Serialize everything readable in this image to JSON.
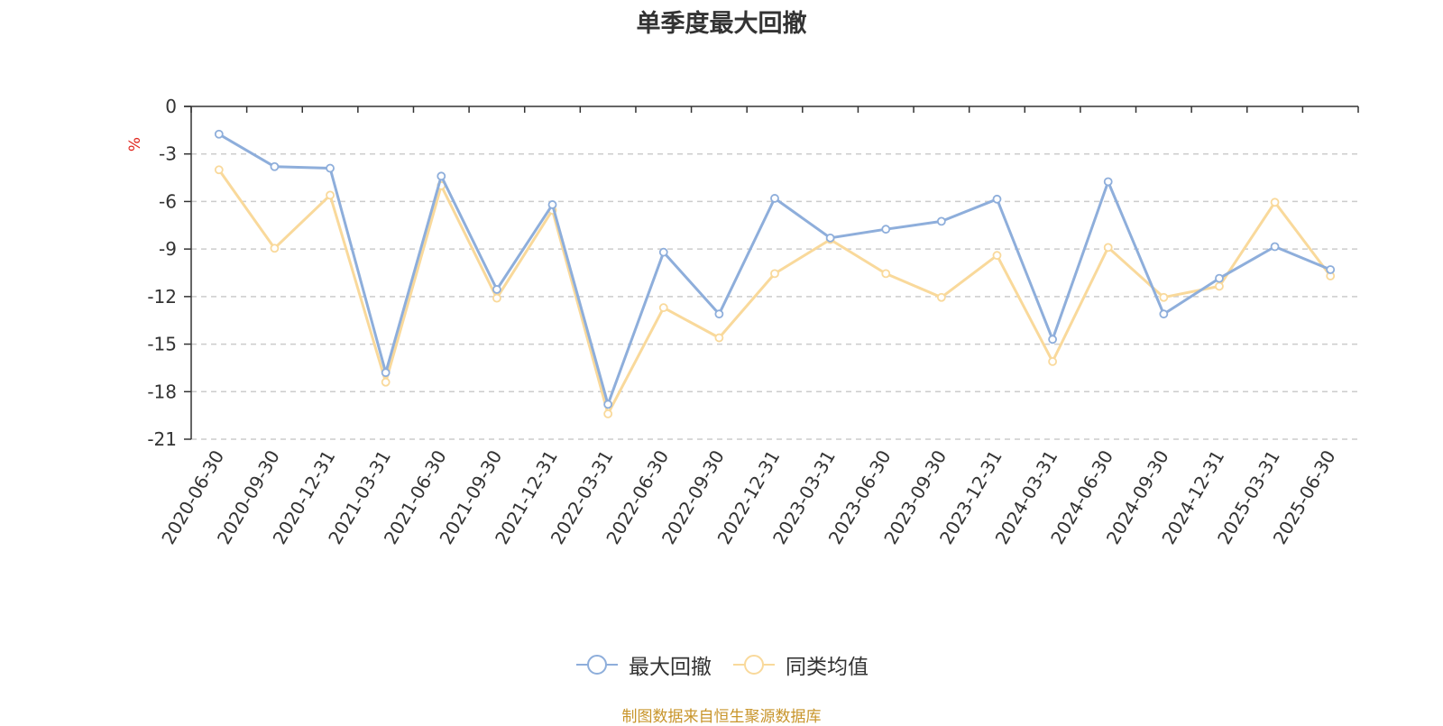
{
  "chart_data": {
    "type": "line",
    "title": "单季度最大回撤",
    "ylabel": "%",
    "ylim": [
      -21,
      0
    ],
    "yticks": [
      0,
      -3,
      -6,
      -9,
      -12,
      -15,
      -18,
      -21
    ],
    "grid": true,
    "legend_position": "bottom",
    "categories": [
      "2020-06-30",
      "2020-09-30",
      "2020-12-31",
      "2021-03-31",
      "2021-06-30",
      "2021-09-30",
      "2021-12-31",
      "2022-03-31",
      "2022-06-30",
      "2022-09-30",
      "2022-12-31",
      "2023-03-31",
      "2023-06-30",
      "2023-09-30",
      "2023-12-31",
      "2024-03-31",
      "2024-06-30",
      "2024-09-30",
      "2024-12-31",
      "2025-03-31",
      "2025-06-30"
    ],
    "series": [
      {
        "name": "最大回撤",
        "color": "#8eaedb",
        "values": [
          -1.75,
          -3.8,
          -3.9,
          -16.8,
          -4.4,
          -11.55,
          -6.2,
          -18.8,
          -9.2,
          -13.1,
          -5.8,
          -8.3,
          -7.75,
          -7.25,
          -5.85,
          -14.7,
          -4.75,
          -13.1,
          -10.85,
          -8.85,
          -10.3
        ]
      },
      {
        "name": "同类均值",
        "color": "#f9d99b",
        "values": [
          -4.0,
          -8.95,
          -5.6,
          -17.4,
          -5.0,
          -12.1,
          -6.55,
          -19.4,
          -12.7,
          -14.6,
          -10.55,
          -8.4,
          -10.55,
          -12.05,
          -9.4,
          -16.1,
          -8.9,
          -12.05,
          -11.35,
          -6.05,
          -10.7
        ]
      }
    ]
  },
  "source_text": "制图数据来自恒生聚源数据库"
}
